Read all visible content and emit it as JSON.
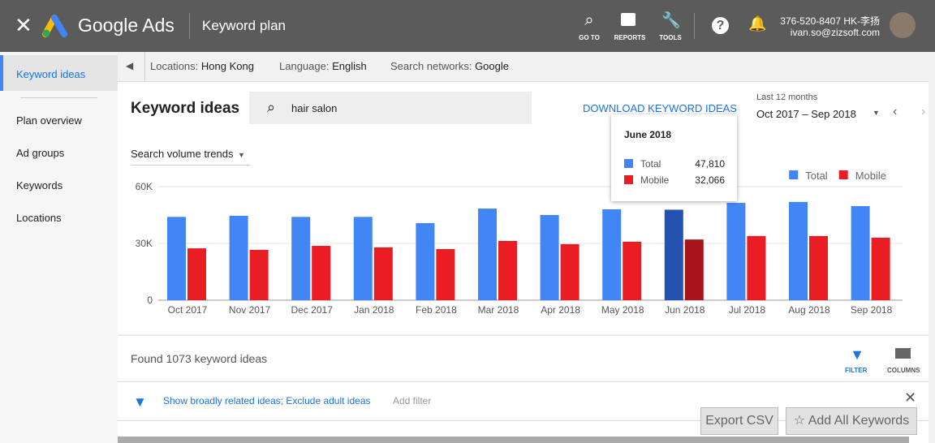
{
  "header": {
    "app": "Google Ads",
    "title": "Keyword plan",
    "nav": [
      "GO TO",
      "REPORTS",
      "TOOLS"
    ],
    "account_id": "376-520-8407 HK-李扬",
    "email": "ivan.so@zizsoft.com"
  },
  "sidebar": {
    "items": [
      "Keyword ideas",
      "Plan overview",
      "Ad groups",
      "Keywords",
      "Locations"
    ]
  },
  "filters": {
    "location_label": "Locations:",
    "location": "Hong Kong",
    "language_label": "Language:",
    "language": "English",
    "networks_label": "Search networks:",
    "networks": "Google"
  },
  "toolbar": {
    "title": "Keyword ideas",
    "search": "hair salon",
    "download": "DOWNLOAD KEYWORD IDEAS",
    "range_label": "Last 12 months",
    "range": "Oct 2017 – Sep 2018",
    "trend_menu": "Search volume trends"
  },
  "chart_data": {
    "type": "bar",
    "categories": [
      "Oct 2017",
      "Nov 2017",
      "Dec 2017",
      "Jan 2018",
      "Feb 2018",
      "Mar 2018",
      "Apr 2018",
      "May 2018",
      "Jun 2018",
      "Jul 2018",
      "Aug 2018",
      "Sep 2018"
    ],
    "series": [
      {
        "name": "Total",
        "color": "#4285f4",
        "highlight_color": "#2551b0",
        "values": [
          44000,
          44600,
          44000,
          44000,
          40700,
          48400,
          45000,
          48000,
          47810,
          51400,
          51900,
          49700
        ]
      },
      {
        "name": "Mobile",
        "color": "#ea1c24",
        "highlight_color": "#a7141c",
        "values": [
          27400,
          26600,
          28700,
          27900,
          27000,
          31300,
          29600,
          30900,
          32066,
          33900,
          33900,
          33000
        ]
      }
    ],
    "highlighted": "Jun 2018",
    "ylim": [
      0,
      60000
    ],
    "yticks": [
      0,
      {
        "value": 30000,
        "label": "30K"
      },
      {
        "value": 60000,
        "label": "60K"
      }
    ],
    "grid": true,
    "legend": "top-right"
  },
  "tooltip": {
    "title": "June 2018",
    "rows": [
      {
        "label": "Total",
        "value": "47,810"
      },
      {
        "label": "Mobile",
        "value": "32,066"
      }
    ]
  },
  "results": {
    "found": "Found 1073 keyword ideas",
    "filter": "FILTER",
    "columns": "COLUMNS",
    "filter_text": "Show broadly related ideas; Exclude adult ideas",
    "add_filter": "Add filter",
    "export": "Export CSV",
    "add_all": "Add All Keywords"
  }
}
